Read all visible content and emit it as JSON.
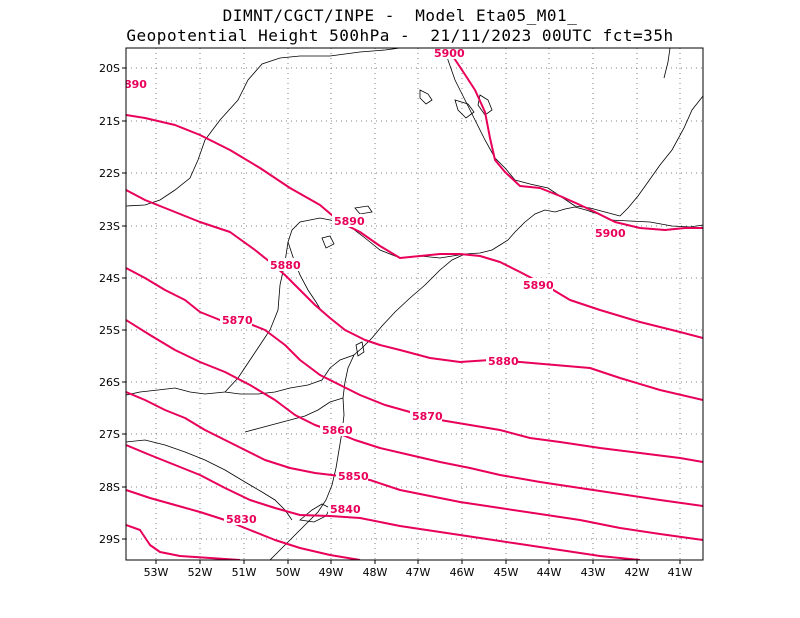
{
  "title": {
    "line1": "DIMNT/CGCT/INPE -  Model Eta05_M01_",
    "line2": "Geopotential Height 500hPa -  21/11/2023 00UTC fct=35h"
  },
  "axes": {
    "lat_labels": [
      "20S",
      "21S",
      "22S",
      "23S",
      "24S",
      "25S",
      "26S",
      "27S",
      "28S",
      "29S"
    ],
    "lon_labels": [
      "53W",
      "52W",
      "51W",
      "50W",
      "49W",
      "48W",
      "47W",
      "46W",
      "45W",
      "44W",
      "43W",
      "42W",
      "41W"
    ]
  },
  "contours": {
    "color": "#e8005a",
    "labels": [
      "890",
      "5900",
      "5890",
      "5900",
      "5880",
      "5890",
      "5870",
      "5880",
      "5870",
      "5860",
      "5850",
      "5840",
      "5830"
    ]
  },
  "colors": {
    "contour": "#e8005a",
    "coast": "#000000",
    "grid": "#808080"
  }
}
